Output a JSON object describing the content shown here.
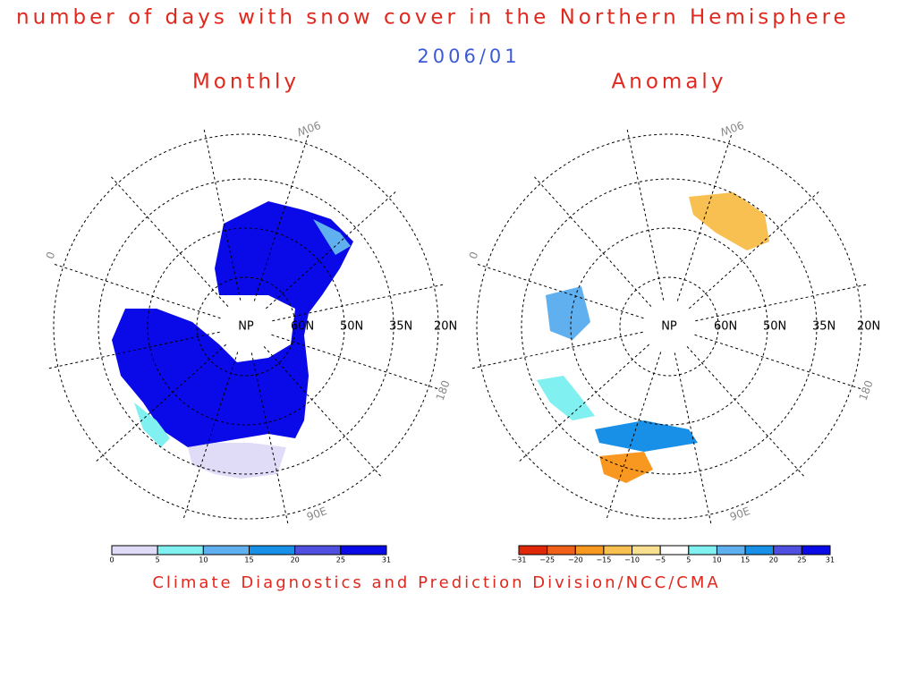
{
  "title": "number of days  with snow cover in the Northern Hemisphere",
  "date": "2006/01",
  "credit": "Climate Diagnostics and Prediction Division/NCC/CMA",
  "panels": [
    {
      "title": "Monthly",
      "pole_label": "NP",
      "lat_labels": [
        "60N",
        "50N",
        "35N",
        "20N"
      ],
      "lon_labels": [
        "90W",
        "0",
        "180",
        "90E"
      ],
      "colorbar": {
        "labels": [
          "0",
          "5",
          "10",
          "15",
          "20",
          "25",
          "31"
        ],
        "colors": [
          "#e0dcf8",
          "#80f0f0",
          "#60b0f0",
          "#1890e8",
          "#5050e0",
          "#0a0ae8"
        ]
      }
    },
    {
      "title": "Anomaly",
      "pole_label": "NP",
      "lat_labels": [
        "60N",
        "50N",
        "35N",
        "20N"
      ],
      "lon_labels": [
        "90W",
        "0",
        "180",
        "90E"
      ],
      "colorbar": {
        "labels": [
          "−31",
          "−25",
          "−20",
          "−15",
          "−10",
          "−5",
          "5",
          "10",
          "15",
          "20",
          "25",
          "31"
        ],
        "colors": [
          "#e02808",
          "#f06018",
          "#f89820",
          "#f8c050",
          "#f8e090",
          "#ffffff",
          "#80f0f0",
          "#60b0f0",
          "#1890e8",
          "#5050e0",
          "#0a0ae8"
        ]
      }
    }
  ]
}
